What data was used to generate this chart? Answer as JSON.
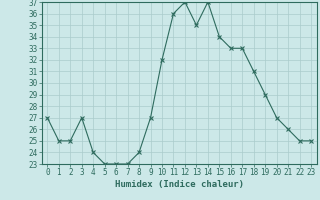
{
  "title": "",
  "xlabel": "Humidex (Indice chaleur)",
  "ylabel": "",
  "x": [
    0,
    1,
    2,
    3,
    4,
    5,
    6,
    7,
    8,
    9,
    10,
    11,
    12,
    13,
    14,
    15,
    16,
    17,
    18,
    19,
    20,
    21,
    22,
    23
  ],
  "y": [
    27,
    25,
    25,
    27,
    24,
    23,
    23,
    23,
    24,
    27,
    32,
    36,
    37,
    35,
    37,
    34,
    33,
    33,
    31,
    29,
    27,
    26,
    25,
    25
  ],
  "ylim": [
    23,
    37
  ],
  "xlim": [
    -0.5,
    23.5
  ],
  "line_color": "#2e6b5e",
  "marker": "x",
  "marker_size": 3,
  "marker_lw": 0.8,
  "line_width": 0.8,
  "bg_color": "#cce8e8",
  "grid_color": "#aacccc",
  "tick_fontsize": 5.5,
  "label_fontsize": 6.5,
  "yticks": [
    23,
    24,
    25,
    26,
    27,
    28,
    29,
    30,
    31,
    32,
    33,
    34,
    35,
    36,
    37
  ],
  "xticks": [
    0,
    1,
    2,
    3,
    4,
    5,
    6,
    7,
    8,
    9,
    10,
    11,
    12,
    13,
    14,
    15,
    16,
    17,
    18,
    19,
    20,
    21,
    22,
    23
  ],
  "spine_color": "#2e6b5e"
}
